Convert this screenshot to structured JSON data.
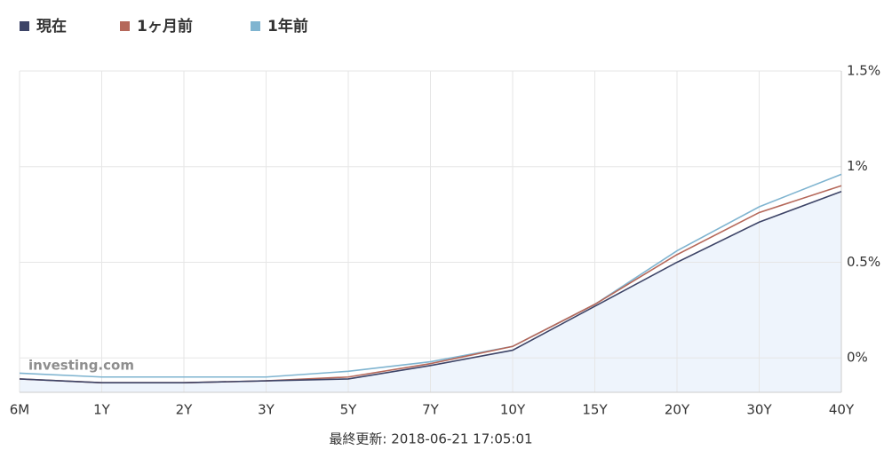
{
  "chart_data": {
    "type": "line",
    "categories": [
      "6M",
      "1Y",
      "2Y",
      "3Y",
      "5Y",
      "7Y",
      "10Y",
      "15Y",
      "20Y",
      "30Y",
      "40Y"
    ],
    "series": [
      {
        "name": "現在",
        "color": "#3d4467",
        "values": [
          -0.11,
          -0.13,
          -0.13,
          -0.12,
          -0.11,
          -0.04,
          0.04,
          0.27,
          0.5,
          0.71,
          0.87
        ]
      },
      {
        "name": "1ヶ月前",
        "color": "#b5685a",
        "values": [
          -0.11,
          -0.13,
          -0.13,
          -0.12,
          -0.1,
          -0.03,
          0.06,
          0.28,
          0.54,
          0.76,
          0.9
        ]
      },
      {
        "name": "1年前",
        "color": "#7fb4d0",
        "values": [
          -0.08,
          -0.1,
          -0.1,
          -0.1,
          -0.07,
          -0.02,
          0.06,
          0.28,
          0.56,
          0.79,
          0.96
        ]
      }
    ],
    "ylim": [
      -0.18,
      1.5
    ],
    "yticks": [
      {
        "value": 0,
        "label": "0%"
      },
      {
        "value": 0.5,
        "label": "0.5%"
      },
      {
        "value": 1,
        "label": "1%"
      },
      {
        "value": 1.5,
        "label": "1.5%"
      }
    ],
    "grid": true,
    "area_series": 0,
    "watermark": "investing.com",
    "footer": "最終更新: 2018-06-21 17:05:01"
  }
}
